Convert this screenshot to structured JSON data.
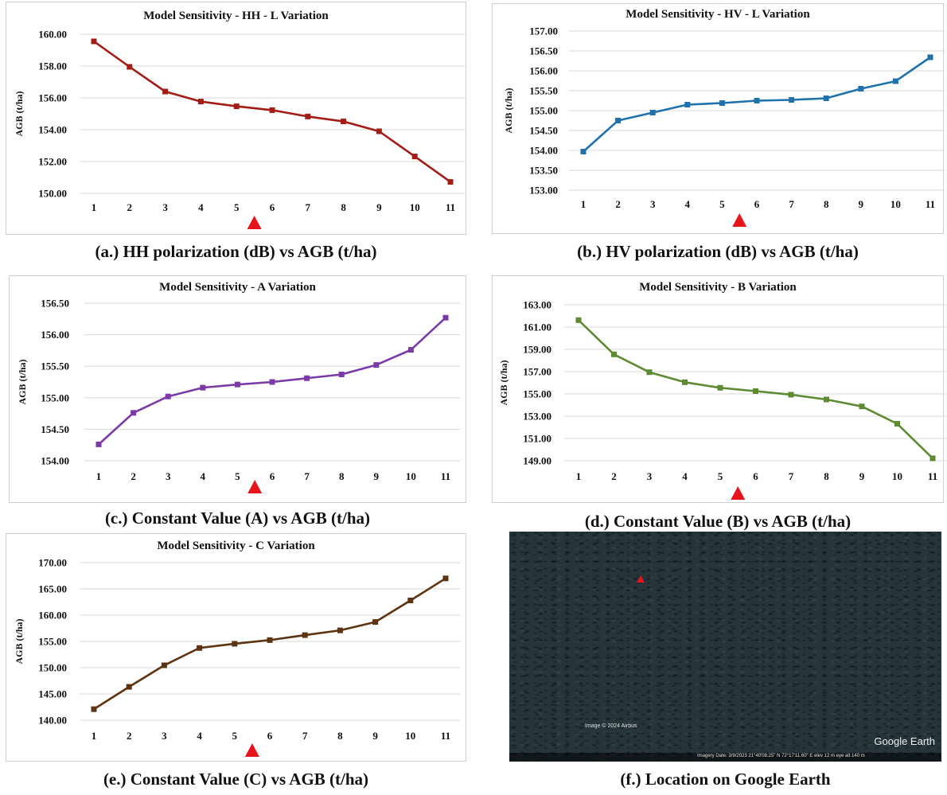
{
  "chart_data": [
    {
      "type": "line",
      "title": "Model Sensitivity - HH - L Variation",
      "ylabel": "AGB (t/ha)",
      "xlabel": "",
      "categories": [
        "1",
        "2",
        "3",
        "4",
        "5",
        "6",
        "7",
        "8",
        "9",
        "10",
        "11"
      ],
      "values": [
        159.55,
        157.95,
        156.4,
        155.77,
        155.47,
        155.23,
        154.83,
        154.52,
        153.9,
        152.32,
        150.72
      ],
      "ylim": [
        150,
        160
      ],
      "yticks": [
        "150.00",
        "152.00",
        "154.00",
        "156.00",
        "158.00",
        "160.00"
      ],
      "color": "#a31c16",
      "marker_position": 5.5,
      "grid": true
    },
    {
      "type": "line",
      "title": "Model Sensitivity - HV - L Variation",
      "ylabel": "AGB (t/ha)",
      "xlabel": "",
      "categories": [
        "1",
        "2",
        "3",
        "4",
        "5",
        "6",
        "7",
        "8",
        "9",
        "10",
        "11"
      ],
      "values": [
        153.97,
        154.75,
        154.95,
        155.15,
        155.19,
        155.25,
        155.27,
        155.31,
        155.55,
        155.74,
        156.34
      ],
      "ylim": [
        153,
        157
      ],
      "yticks": [
        "153.00",
        "153.50",
        "154.00",
        "154.50",
        "155.00",
        "155.50",
        "156.00",
        "156.50",
        "157.00"
      ],
      "color": "#1f72ad",
      "marker_position": 5.5,
      "grid": true
    },
    {
      "type": "line",
      "title": "Model Sensitivity - A Variation",
      "ylabel": "AGB (t/ha)",
      "xlabel": "",
      "categories": [
        "1",
        "2",
        "3",
        "4",
        "5",
        "6",
        "7",
        "8",
        "9",
        "10",
        "11"
      ],
      "values": [
        154.26,
        154.76,
        155.02,
        155.16,
        155.21,
        155.25,
        155.31,
        155.37,
        155.52,
        155.76,
        156.27
      ],
      "ylim": [
        154,
        156.5
      ],
      "yticks": [
        "154.00",
        "154.50",
        "155.00",
        "155.50",
        "156.00",
        "156.50"
      ],
      "color": "#7a3aa8",
      "marker_position": 5.5,
      "grid": true
    },
    {
      "type": "line",
      "title": "Model Sensitivity - B Variation",
      "ylabel": "AGB (t/ha)",
      "xlabel": "",
      "categories": [
        "1",
        "2",
        "3",
        "4",
        "5",
        "6",
        "7",
        "8",
        "9",
        "10",
        "11"
      ],
      "values": [
        161.62,
        158.55,
        156.95,
        156.05,
        155.55,
        155.25,
        154.93,
        154.5,
        153.88,
        152.32,
        149.22
      ],
      "ylim": [
        149,
        163
      ],
      "yticks": [
        "149.00",
        "151.00",
        "153.00",
        "155.00",
        "157.00",
        "159.00",
        "161.00",
        "163.00"
      ],
      "color": "#5e8a32",
      "marker_position": 5.5,
      "grid": true
    },
    {
      "type": "line",
      "title": "Model Sensitivity - C Variation",
      "ylabel": "AGB (t/ha)",
      "xlabel": "",
      "categories": [
        "1",
        "2",
        "3",
        "4",
        "5",
        "6",
        "7",
        "8",
        "9",
        "10",
        "11"
      ],
      "values": [
        142.1,
        146.35,
        150.45,
        153.75,
        154.55,
        155.25,
        156.2,
        157.1,
        158.7,
        162.8,
        167.0
      ],
      "ylim": [
        140,
        170
      ],
      "yticks": [
        "140.00",
        "145.00",
        "150.00",
        "155.00",
        "160.00",
        "165.00",
        "170.00"
      ],
      "color": "#5c3411",
      "marker_position": 5.5,
      "grid": true
    }
  ],
  "captions": {
    "a": "(a.) HH polarization (dB) vs AGB (t/ha)",
    "b": "(b.) HV polarization (dB) vs AGB (t/ha)",
    "c": "(c.) Constant Value (A) vs AGB (t/ha)",
    "d": "(d.) Constant Value (B) vs AGB (t/ha)",
    "e": "(e.) Constant Value (C) vs AGB (t/ha)",
    "f": "(f.) Location on Google Earth"
  },
  "location_image": {
    "credit": "Image © 2024 Airbus",
    "brand": "Google Earth",
    "footer": "Imagery Date: 3/9/2023    21°40'08.25\" N   72°17'11.60\" E   elev   12 m      eye alt   140 m",
    "marker_color": "#e8141c"
  },
  "marker_color": "#e8141c"
}
